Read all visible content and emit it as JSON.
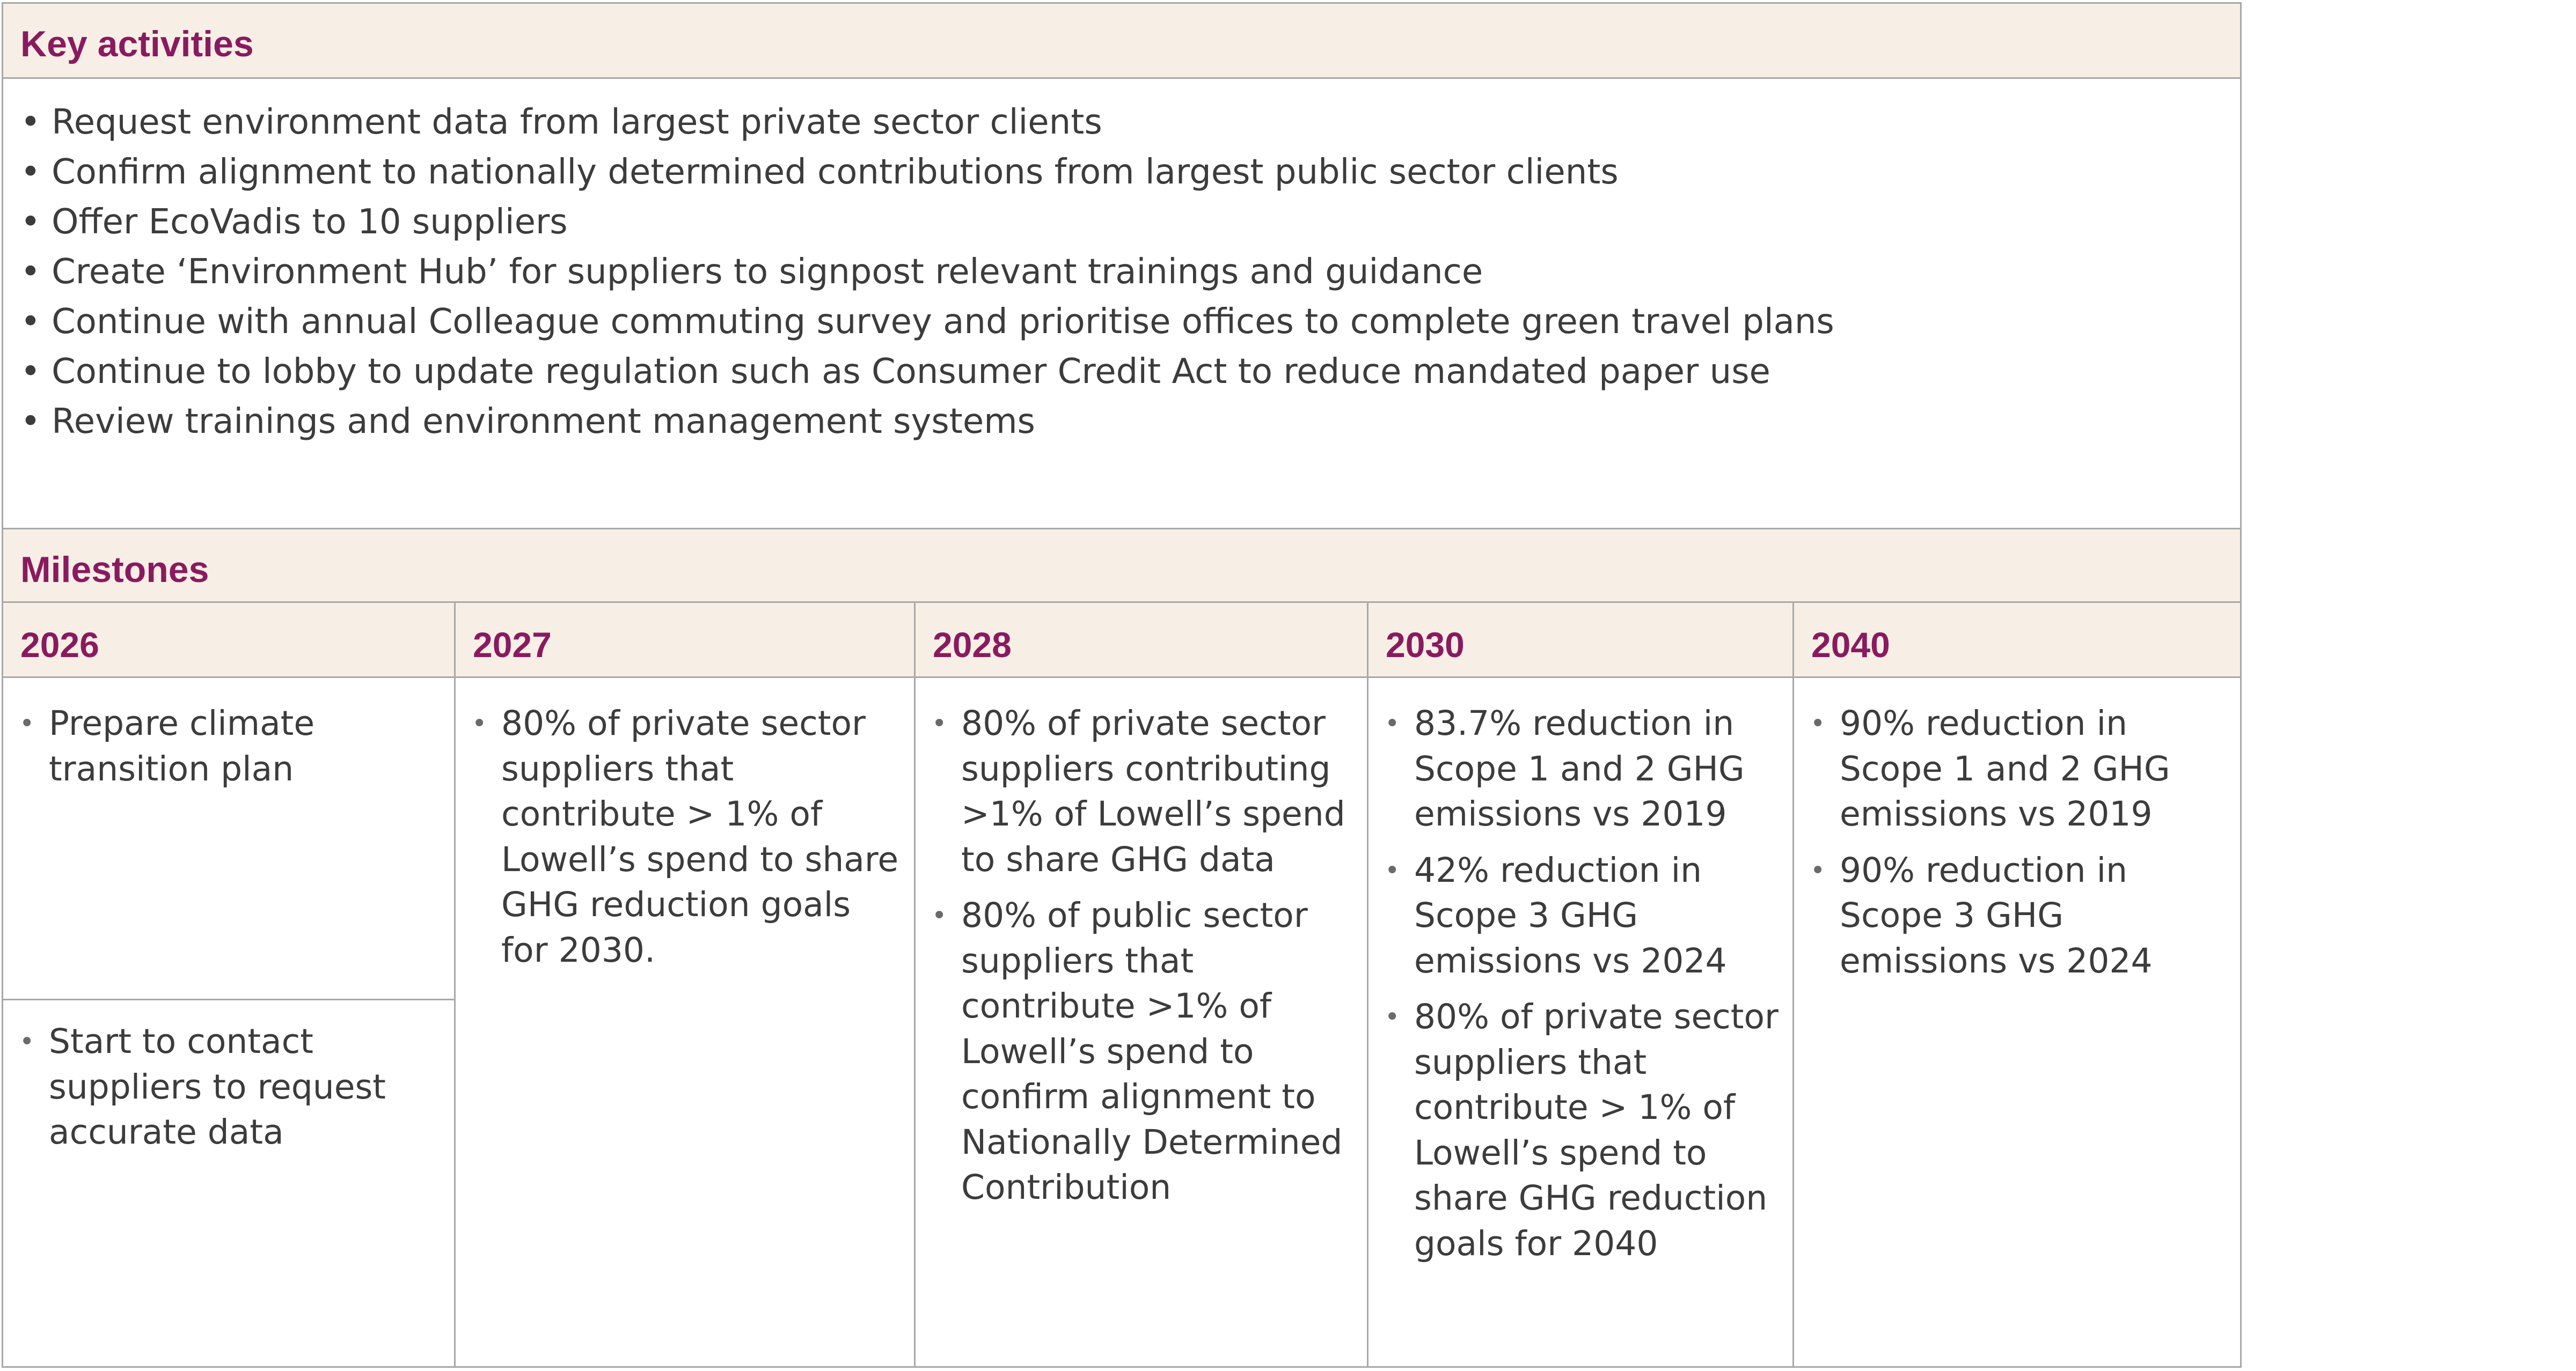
{
  "key_activities": {
    "title": "Key activities",
    "items": [
      "Request environment data from largest private sector clients",
      "Confirm alignment to nationally determined contributions from largest public sector clients",
      "Offer EcoVadis to 10 suppliers",
      "Create ‘Environment Hub’ for suppliers to signpost relevant trainings and guidance",
      "Continue with annual Colleague commuting survey and prioritise offices to complete green travel plans",
      "Continue to lobby to update regulation such as Consumer Credit Act to reduce mandated paper use",
      "Review trainings and environment management systems"
    ]
  },
  "milestones": {
    "title": "Milestones",
    "columns": [
      {
        "year": "2026",
        "upper": [
          " Prepare climate transition plan"
        ],
        "lower": [
          "Start to contact suppliers to request accurate data"
        ]
      },
      {
        "year": "2027",
        "items": [
          "80% of private sector suppliers that contribute > 1% of Lowell’s spend to share GHG reduction goals for 2030."
        ]
      },
      {
        "year": "2028",
        "items": [
          "80% of private sector suppliers contributing >1% of Lowell’s spend to share GHG data",
          "80% of public sector suppliers that contribute >1% of Lowell’s spend to confirm alignment to Nationally Determined Contribution"
        ]
      },
      {
        "year": "2030",
        "items": [
          "83.7% reduction in Scope 1 and 2 GHG emissions vs 2019",
          "42% reduction in Scope 3 GHG emissions vs 2024",
          "80% of private sector suppliers that contribute > 1% of Lowell’s spend to share GHG reduction goals for 2040"
        ]
      },
      {
        "year": "2040",
        "items": [
          "90% reduction in Scope 1 and 2 GHG emissions vs 2019",
          "90% reduction in Scope 3 GHG emissions vs 2024"
        ]
      }
    ]
  }
}
